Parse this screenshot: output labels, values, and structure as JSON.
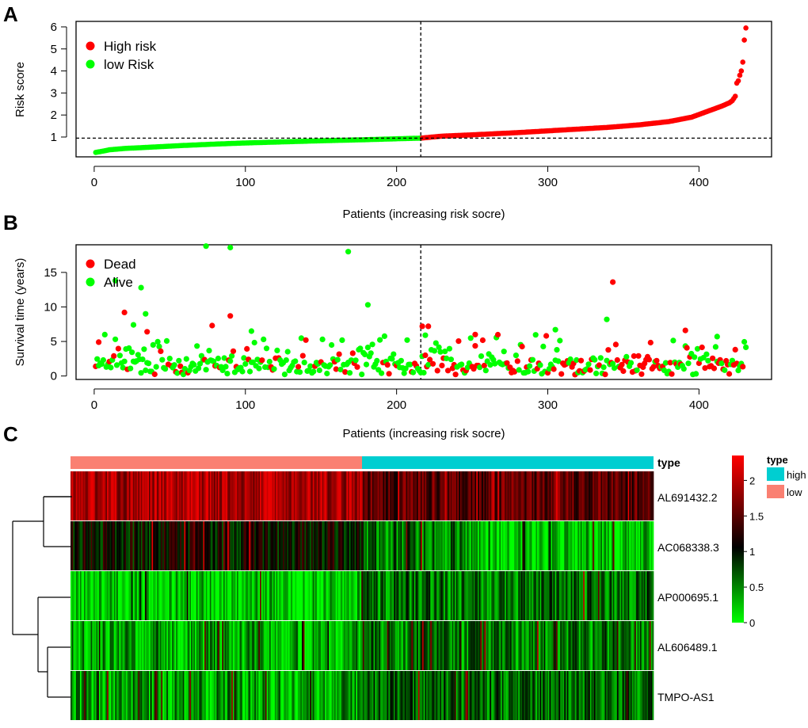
{
  "figure": {
    "panel_labels": [
      "A",
      "B",
      "C"
    ]
  },
  "colors": {
    "high": "#ff0000",
    "low": "#00ff00",
    "dead": "#ff0000",
    "alive": "#00ff00",
    "type_high": "#00ced1",
    "type_low": "#fa8072",
    "heat_low": "#00ff00",
    "heat_mid": "#000000",
    "heat_high": "#ff0000"
  },
  "chart_data": [
    {
      "id": "risk_score",
      "type": "scatter",
      "title": "",
      "xlabel": "Patients (increasing risk socre)",
      "ylabel": "Risk score",
      "xlim": [
        -12,
        448
      ],
      "ylim": [
        0.1,
        6.25
      ],
      "xticks": [
        "0",
        "100",
        "200",
        "300",
        "400"
      ],
      "yticks": [
        "1",
        "2",
        "3",
        "4",
        "5",
        "6"
      ],
      "n_patients": 431,
      "cutoff_index": 216,
      "cutoff_value": 0.95,
      "legend": [
        {
          "label": "High risk",
          "group": "high"
        },
        {
          "label": "low Risk",
          "group": "low"
        }
      ],
      "curve_knots": [
        [
          1,
          0.3
        ],
        [
          5,
          0.35
        ],
        [
          10,
          0.42
        ],
        [
          20,
          0.48
        ],
        [
          40,
          0.55
        ],
        [
          60,
          0.62
        ],
        [
          80,
          0.68
        ],
        [
          100,
          0.73
        ],
        [
          120,
          0.77
        ],
        [
          150,
          0.83
        ],
        [
          180,
          0.88
        ],
        [
          200,
          0.92
        ],
        [
          216,
          0.95
        ],
        [
          230,
          1.04
        ],
        [
          250,
          1.1
        ],
        [
          280,
          1.2
        ],
        [
          300,
          1.28
        ],
        [
          320,
          1.36
        ],
        [
          340,
          1.44
        ],
        [
          360,
          1.55
        ],
        [
          380,
          1.7
        ],
        [
          395,
          1.9
        ],
        [
          405,
          2.15
        ],
        [
          415,
          2.4
        ],
        [
          420,
          2.55
        ],
        [
          422,
          2.65
        ],
        [
          424,
          2.85
        ],
        [
          425,
          3.45
        ],
        [
          426,
          3.55
        ],
        [
          427,
          3.8
        ],
        [
          428,
          4.0
        ],
        [
          429,
          4.4
        ],
        [
          430,
          5.4
        ],
        [
          431,
          5.95
        ]
      ]
    },
    {
      "id": "survival",
      "type": "scatter",
      "title": "",
      "xlabel": "Patients (increasing risk socre)",
      "ylabel": "Survival time (years)",
      "xlim": [
        -12,
        448
      ],
      "ylim": [
        -0.5,
        19
      ],
      "xticks": [
        "0",
        "100",
        "200",
        "300",
        "400"
      ],
      "yticks": [
        "0",
        "5",
        "10",
        "15"
      ],
      "n_patients": 431,
      "cutoff_index": 216,
      "legend": [
        {
          "label": "Dead",
          "status": "dead"
        },
        {
          "label": "Alive",
          "status": "alive"
        }
      ],
      "notable_points": [
        {
          "x": 74,
          "y": 18.8,
          "status": "alive"
        },
        {
          "x": 90,
          "y": 18.6,
          "status": "alive"
        },
        {
          "x": 168,
          "y": 18.0,
          "status": "alive"
        },
        {
          "x": 14,
          "y": 13.8,
          "status": "alive"
        },
        {
          "x": 31,
          "y": 12.8,
          "status": "alive"
        },
        {
          "x": 343,
          "y": 13.6,
          "status": "dead"
        },
        {
          "x": 181,
          "y": 10.3,
          "status": "alive"
        },
        {
          "x": 20,
          "y": 9.2,
          "status": "dead"
        },
        {
          "x": 34,
          "y": 9.0,
          "status": "alive"
        },
        {
          "x": 90,
          "y": 8.7,
          "status": "dead"
        },
        {
          "x": 339,
          "y": 8.2,
          "status": "alive"
        },
        {
          "x": 78,
          "y": 7.3,
          "status": "dead"
        },
        {
          "x": 26,
          "y": 7.4,
          "status": "alive"
        },
        {
          "x": 217,
          "y": 7.2,
          "status": "dead"
        },
        {
          "x": 221,
          "y": 7.2,
          "status": "dead"
        },
        {
          "x": 305,
          "y": 6.7,
          "status": "alive"
        },
        {
          "x": 391,
          "y": 6.6,
          "status": "dead"
        },
        {
          "x": 35,
          "y": 6.4,
          "status": "dead"
        },
        {
          "x": 104,
          "y": 6.5,
          "status": "alive"
        },
        {
          "x": 219,
          "y": 5.9,
          "status": "alive"
        },
        {
          "x": 412,
          "y": 5.7,
          "status": "alive"
        },
        {
          "x": 252,
          "y": 6.0,
          "status": "dead"
        },
        {
          "x": 3,
          "y": 4.9,
          "status": "dead"
        }
      ],
      "random_seed": 12345
    },
    {
      "id": "heatmap",
      "type": "heatmap",
      "title": "",
      "rows": [
        "AL691432.2",
        "AC068338.3",
        "AP000695.1",
        "AL606489.1",
        "TMPO-AS1"
      ],
      "n_columns": 431,
      "annotation_name": "type",
      "annotation_split_index": 216,
      "annotation_left": "low",
      "annotation_right": "high",
      "legend_title": "type",
      "legend_items": [
        "high",
        "low"
      ],
      "colorbar_ticks": [
        "0",
        "0.5",
        "1",
        "1.5",
        "2"
      ],
      "value_range": [
        0,
        2.35
      ],
      "row_means_low": [
        2.0,
        1.05,
        0.2,
        0.35,
        0.4
      ],
      "row_means_high": [
        1.55,
        0.55,
        0.6,
        0.55,
        0.65
      ],
      "dendrogram": "((AL691432.2, AC068338.3), (AP000695.1, (AL606489.1, TMPO-AS1)))"
    }
  ]
}
